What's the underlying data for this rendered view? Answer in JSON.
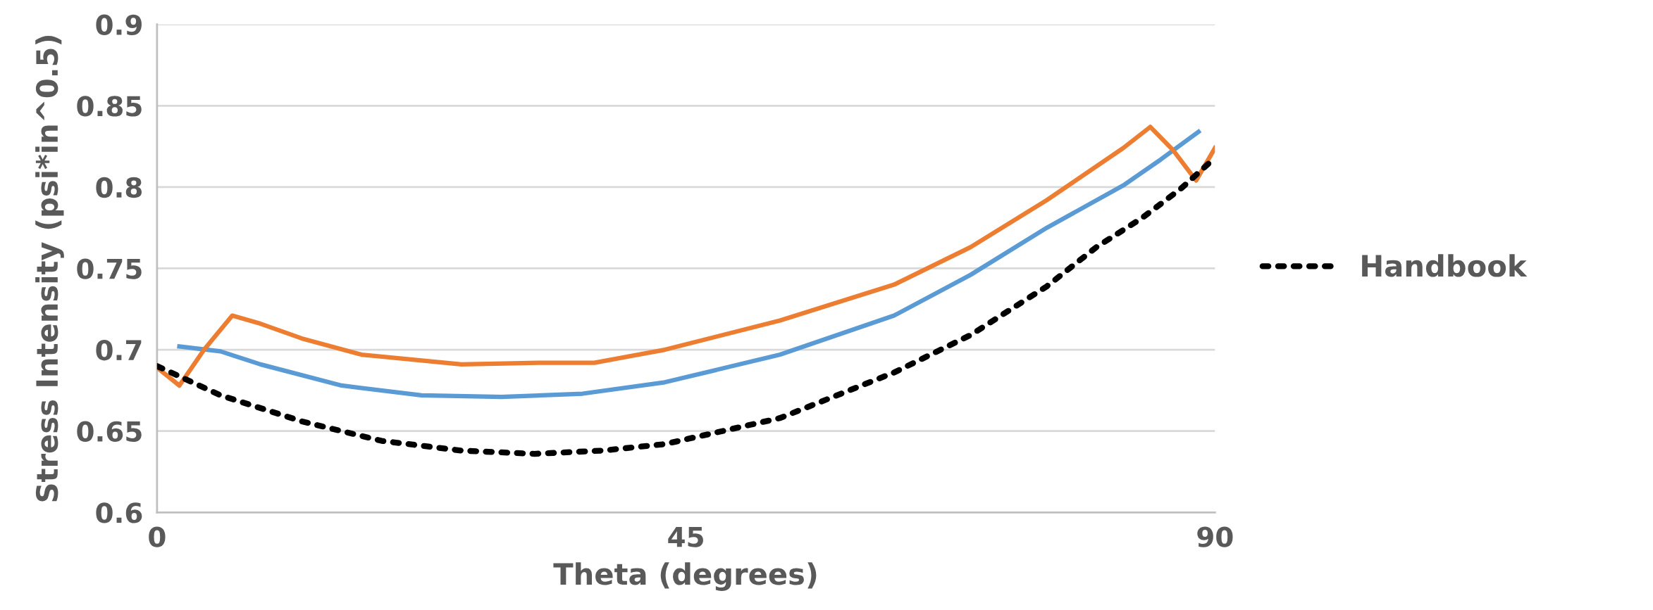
{
  "chart_data": {
    "type": "line",
    "xlabel": "Theta (degrees)",
    "ylabel": "Stress Intensity (psi*in^0.5)",
    "xlim": [
      0,
      90
    ],
    "xticks": [
      0,
      45,
      90
    ],
    "ylim": [
      0.6,
      0.9
    ],
    "yticks": [
      0.6,
      0.65,
      0.7,
      0.75,
      0.8,
      0.85,
      0.9
    ],
    "grid": "y",
    "legend": "right",
    "series": [
      {
        "color": "#5b9bd5",
        "line_style": "solid",
        "x": [
          1.9,
          5.4,
          8.8,
          15.7,
          22.5,
          29.3,
          36.2,
          43.2,
          53,
          62.7,
          69.2,
          75.7,
          82.2,
          85.4,
          88.6
        ],
        "values": [
          0.702,
          0.699,
          0.691,
          0.678,
          0.672,
          0.671,
          0.673,
          0.68,
          0.697,
          0.721,
          0.746,
          0.775,
          0.801,
          0.817,
          0.834
        ]
      },
      {
        "color": "#ed7d31",
        "line_style": "solid",
        "x": [
          0,
          1.9,
          4,
          6.4,
          8.8,
          12.3,
          17.4,
          25.9,
          32.8,
          37.2,
          43.2,
          53,
          62.7,
          69.2,
          75.7,
          82.2,
          84.5,
          86.4,
          88.4,
          90
        ],
        "values": [
          0.689,
          0.678,
          0.7,
          0.721,
          0.716,
          0.707,
          0.697,
          0.691,
          0.692,
          0.692,
          0.7,
          0.718,
          0.74,
          0.763,
          0.792,
          0.824,
          0.837,
          0.823,
          0.804,
          0.824
        ]
      },
      {
        "name": "Handbook",
        "color": "#000000",
        "line_style": "dotted",
        "x": [
          0,
          5.4,
          12.3,
          19.1,
          25.9,
          32.1,
          37.9,
          43.2,
          53,
          62.7,
          69.2,
          75.7,
          79.9,
          83.8,
          87.1,
          90
        ],
        "values": [
          0.69,
          0.672,
          0.656,
          0.644,
          0.638,
          0.636,
          0.638,
          0.642,
          0.658,
          0.686,
          0.709,
          0.739,
          0.763,
          0.781,
          0.799,
          0.818
        ]
      }
    ]
  }
}
